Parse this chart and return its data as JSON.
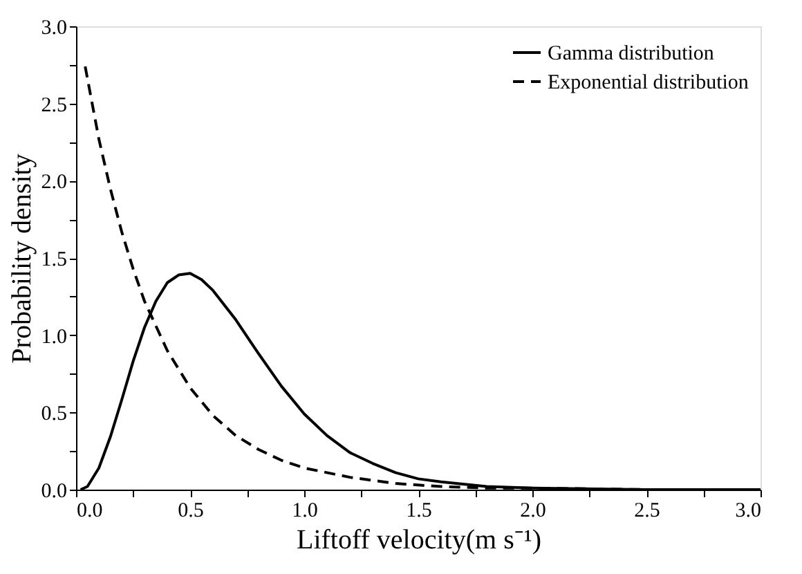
{
  "chart_data": {
    "type": "line",
    "xlabel": "Liftoff velocity(m s⁻¹)",
    "ylabel": "Probability density",
    "xlim": [
      0,
      3
    ],
    "ylim": [
      0,
      3
    ],
    "xticks": [
      {
        "value": 0,
        "label": "0.0"
      },
      {
        "value": 0.25,
        "label": null
      },
      {
        "value": 0.5,
        "label": "0.5"
      },
      {
        "value": 0.75,
        "label": null
      },
      {
        "value": 1,
        "label": "1.0"
      },
      {
        "value": 1.25,
        "label": null
      },
      {
        "value": 1.5,
        "label": "1.5"
      },
      {
        "value": 1.75,
        "label": null
      },
      {
        "value": 2,
        "label": "2.0"
      },
      {
        "value": 2.25,
        "label": null
      },
      {
        "value": 2.5,
        "label": "2.5"
      },
      {
        "value": 2.75,
        "label": null
      },
      {
        "value": 3,
        "label": "3.0"
      }
    ],
    "yticks": [
      {
        "value": 0,
        "label": "0.0"
      },
      {
        "value": 0.25,
        "label": null
      },
      {
        "value": 0.5,
        "label": "0.5"
      },
      {
        "value": 0.75,
        "label": null
      },
      {
        "value": 1,
        "label": "1.0"
      },
      {
        "value": 1.25,
        "label": null
      },
      {
        "value": 1.5,
        "label": "1.5"
      },
      {
        "value": 1.75,
        "label": null
      },
      {
        "value": 2,
        "label": "2.0"
      },
      {
        "value": 2.25,
        "label": null
      },
      {
        "value": 2.5,
        "label": "2.5"
      },
      {
        "value": 2.75,
        "label": null
      },
      {
        "value": 3,
        "label": "3.0"
      }
    ],
    "grid": false,
    "legend": "top right",
    "marker": "none",
    "series": [
      {
        "name": "Gamma distribution",
        "color": "#000000",
        "line_style": "solid",
        "x": [
          0.02,
          0.05,
          0.1,
          0.15,
          0.2,
          0.25,
          0.3,
          0.35,
          0.4,
          0.45,
          0.5,
          0.55,
          0.6,
          0.7,
          0.8,
          0.9,
          1.0,
          1.1,
          1.2,
          1.3,
          1.4,
          1.5,
          1.6,
          1.8,
          2.0,
          2.5,
          3.0
        ],
        "values": [
          0.0,
          0.02,
          0.14,
          0.34,
          0.58,
          0.83,
          1.05,
          1.22,
          1.34,
          1.39,
          1.4,
          1.36,
          1.29,
          1.1,
          0.88,
          0.67,
          0.49,
          0.35,
          0.24,
          0.17,
          0.11,
          0.07,
          0.05,
          0.02,
          0.01,
          0.0,
          0.0
        ]
      },
      {
        "name": "Exponential distribution",
        "color": "#000000",
        "line_style": "dashed",
        "x": [
          0.04,
          0.1,
          0.15,
          0.2,
          0.25,
          0.3,
          0.4,
          0.5,
          0.6,
          0.7,
          0.8,
          0.9,
          1.0,
          1.2,
          1.4,
          1.6,
          1.8,
          2.0,
          2.5,
          3.0
        ],
        "values": [
          2.74,
          2.27,
          1.95,
          1.67,
          1.43,
          1.22,
          0.9,
          0.66,
          0.48,
          0.35,
          0.26,
          0.19,
          0.14,
          0.08,
          0.04,
          0.02,
          0.01,
          0.01,
          0.0,
          0.0
        ]
      }
    ]
  }
}
